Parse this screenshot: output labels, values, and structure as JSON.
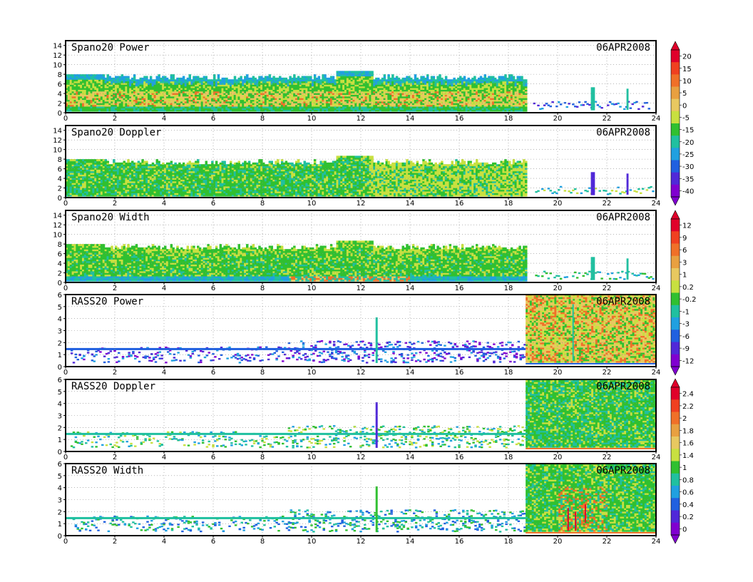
{
  "chart_data": [
    {
      "type": "heatmap",
      "title": "Spano20  Power",
      "date": "06APR2008",
      "xlim": [
        0,
        24
      ],
      "ylim": [
        0,
        15
      ],
      "xticks": [
        "0",
        "2",
        "4",
        "6",
        "8",
        "10",
        "12",
        "14",
        "16",
        "18",
        "20",
        "22",
        "24"
      ],
      "yticks": [
        "0",
        "2",
        "4",
        "6",
        "8",
        "10",
        "12",
        "14"
      ],
      "colorbar": {
        "labels": [
          "20",
          "15",
          "10",
          "5",
          "0",
          "-5",
          "-15",
          "-20",
          "-25",
          "-30",
          "-35",
          "-40"
        ],
        "colors": [
          "#e0002a",
          "#f04020",
          "#f07028",
          "#e8a040",
          "#e8c860",
          "#c8e040",
          "#30c030",
          "#20c0a0",
          "#20a0e0",
          "#2060e0",
          "#5028d8",
          "#8000d0"
        ]
      }
    },
    {
      "type": "heatmap",
      "title": "Spano20  Doppler",
      "date": "06APR2008",
      "xlim": [
        0,
        24
      ],
      "ylim": [
        0,
        15
      ],
      "xticks": [
        "0",
        "2",
        "4",
        "6",
        "8",
        "10",
        "12",
        "14",
        "16",
        "18",
        "20",
        "22",
        "24"
      ],
      "yticks": [
        "0",
        "2",
        "4",
        "6",
        "8",
        "10",
        "12",
        "14"
      ]
    },
    {
      "type": "heatmap",
      "title": "Spano20  Width",
      "date": "06APR2008",
      "xlim": [
        0,
        24
      ],
      "ylim": [
        0,
        15
      ],
      "xticks": [
        "0",
        "2",
        "4",
        "6",
        "8",
        "10",
        "12",
        "14",
        "16",
        "18",
        "20",
        "22",
        "24"
      ],
      "yticks": [
        "0",
        "2",
        "4",
        "6",
        "8",
        "10",
        "12",
        "14"
      ],
      "colorbar": {
        "labels": [
          "12",
          "9",
          "6",
          "3",
          "1",
          "0.2",
          "-0.2",
          "-1",
          "-3",
          "-6",
          "-9",
          "-12"
        ],
        "colors": [
          "#e0002a",
          "#f04020",
          "#f07028",
          "#e8a040",
          "#e8c860",
          "#c8e040",
          "#30c030",
          "#20c0a0",
          "#20a0e0",
          "#2060e0",
          "#5028d8",
          "#8000d0"
        ]
      }
    },
    {
      "type": "heatmap",
      "title": "RASS20  Power",
      "date": "06APR2008",
      "xlim": [
        0,
        24
      ],
      "ylim": [
        0,
        6
      ],
      "xticks": [
        "0",
        "2",
        "4",
        "6",
        "8",
        "10",
        "12",
        "14",
        "16",
        "18",
        "20",
        "22",
        "24"
      ],
      "yticks": [
        "0",
        "1",
        "2",
        "3",
        "4",
        "5",
        "6"
      ]
    },
    {
      "type": "heatmap",
      "title": "RASS20  Doppler",
      "date": "06APR2008",
      "xlim": [
        0,
        24
      ],
      "ylim": [
        0,
        6
      ],
      "xticks": [
        "0",
        "2",
        "4",
        "6",
        "8",
        "10",
        "12",
        "14",
        "16",
        "18",
        "20",
        "22",
        "24"
      ],
      "yticks": [
        "0",
        "1",
        "2",
        "3",
        "4",
        "5",
        "6"
      ],
      "colorbar": {
        "labels": [
          "2.4",
          "2.2",
          "2",
          "1.8",
          "1.6",
          "1.4",
          "1",
          "0.8",
          "0.6",
          "0.4",
          "0.2",
          "0"
        ],
        "colors": [
          "#e0002a",
          "#f04020",
          "#f07028",
          "#e8a040",
          "#e8c860",
          "#c8e040",
          "#30c030",
          "#20c0a0",
          "#20a0e0",
          "#2060e0",
          "#5028d8",
          "#8000d0"
        ]
      }
    },
    {
      "type": "heatmap",
      "title": "RASS20  Width",
      "date": "06APR2008",
      "xlim": [
        0,
        24
      ],
      "ylim": [
        0,
        6
      ],
      "xticks": [
        "0",
        "2",
        "4",
        "6",
        "8",
        "10",
        "12",
        "14",
        "16",
        "18",
        "20",
        "22",
        "24"
      ],
      "yticks": [
        "0",
        "1",
        "2",
        "3",
        "4",
        "5",
        "6"
      ]
    }
  ]
}
